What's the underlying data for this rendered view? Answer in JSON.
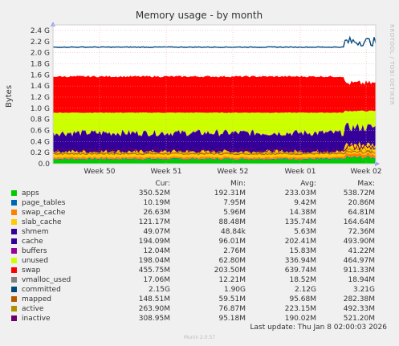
{
  "chart_data": {
    "type": "area",
    "title": "Memory usage - by month",
    "ylabel": "Bytes",
    "side_label": "RRDTOOL / TOBI OETIKER",
    "x_ticks": [
      "Week 50",
      "Week 51",
      "Week 52",
      "Week 01",
      "Week 02"
    ],
    "y_ticks": [
      "0.0",
      "0.2 G",
      "0.4 G",
      "0.6 G",
      "0.8 G",
      "1.0 G",
      "1.2 G",
      "1.4 G",
      "1.6 G",
      "1.8 G",
      "2.0 G",
      "2.2 G",
      "2.4 G"
    ],
    "ylim_gb": [
      0,
      2.5
    ],
    "grid": true,
    "stacked_levels_gb": {
      "apps": 0.08,
      "swap_cache_slab_shmem_top": 0.22,
      "cache_top": 0.55,
      "unused_top": 0.92,
      "swap_top": 1.57,
      "committed": 2.1,
      "inactive": 0.25,
      "active": 0.2
    },
    "recent_levels_gb": {
      "cache_top": 0.65,
      "unused_top": 0.95,
      "swap_top": 1.45,
      "committed": 2.2
    },
    "legend_headers": [
      "Cur:",
      "Min:",
      "Avg:",
      "Max:"
    ],
    "series": [
      {
        "name": "apps",
        "color": "#00cc00",
        "cur": "350.52M",
        "min": "192.31M",
        "avg": "233.03M",
        "max": "538.72M"
      },
      {
        "name": "page_tables",
        "color": "#0066b3",
        "cur": "10.19M",
        "min": "7.95M",
        "avg": "9.42M",
        "max": "20.86M"
      },
      {
        "name": "swap_cache",
        "color": "#ff8000",
        "cur": "26.63M",
        "min": "5.96M",
        "avg": "14.38M",
        "max": "64.81M"
      },
      {
        "name": "slab_cache",
        "color": "#ffcc00",
        "cur": "121.17M",
        "min": "88.48M",
        "avg": "135.74M",
        "max": "164.64M"
      },
      {
        "name": "shmem",
        "color": "#330099",
        "cur": "49.07M",
        "min": "48.84k",
        "avg": "5.63M",
        "max": "72.36M"
      },
      {
        "name": "cache",
        "color": "#330099",
        "cur": "194.09M",
        "min": "96.01M",
        "avg": "202.41M",
        "max": "493.90M"
      },
      {
        "name": "buffers",
        "color": "#990099",
        "cur": "12.04M",
        "min": "2.76M",
        "avg": "15.83M",
        "max": "41.22M"
      },
      {
        "name": "unused",
        "color": "#ccff00",
        "cur": "198.04M",
        "min": "62.80M",
        "avg": "336.94M",
        "max": "464.97M"
      },
      {
        "name": "swap",
        "color": "#ff0000",
        "cur": "455.75M",
        "min": "203.50M",
        "avg": "639.74M",
        "max": "911.33M"
      },
      {
        "name": "vmalloc_used",
        "color": "#808080",
        "cur": "17.06M",
        "min": "12.21M",
        "avg": "18.52M",
        "max": "18.94M"
      },
      {
        "name": "committed",
        "color": "#00487d",
        "cur": "2.15G",
        "min": "1.90G",
        "avg": "2.12G",
        "max": "3.21G"
      },
      {
        "name": "mapped",
        "color": "#b35a00",
        "cur": "148.51M",
        "min": "59.51M",
        "avg": "95.68M",
        "max": "282.38M"
      },
      {
        "name": "active",
        "color": "#b38f00",
        "cur": "263.90M",
        "min": "76.87M",
        "avg": "223.15M",
        "max": "492.33M"
      },
      {
        "name": "inactive",
        "color": "#6b006b",
        "cur": "308.95M",
        "min": "95.18M",
        "avg": "190.02M",
        "max": "521.20M"
      }
    ]
  },
  "footer": {
    "last_update": "Last update: Thu Jan  8 02:00:03 2026",
    "version": "Munin 2.0.57"
  }
}
